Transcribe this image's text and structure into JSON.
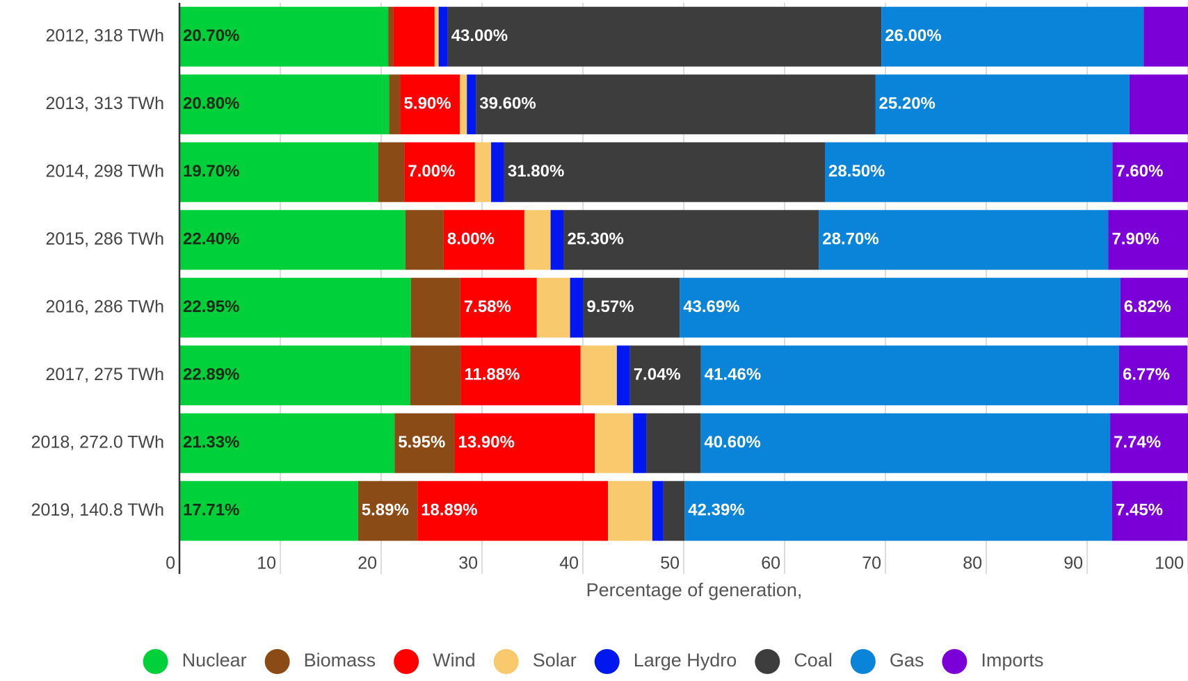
{
  "chart_data": {
    "type": "stacked-horizontal-bar",
    "categories": [
      "2012, 318 TWh",
      "2013, 313 TWh",
      "2014, 298 TWh",
      "2015, 286 TWh",
      "2016, 286 TWh",
      "2017, 275 TWh",
      "2018, 272.0 TWh",
      "2019, 140.8 TWh"
    ],
    "x_label": "Percentage of generation,",
    "xlim": [
      0,
      100
    ],
    "xticks": [
      0,
      10,
      20,
      30,
      40,
      50,
      60,
      70,
      80,
      90,
      100
    ],
    "grid": true,
    "legend": "bottom",
    "series": [
      {
        "name": "Nuclear",
        "color": "#00d03a",
        "label_color": "#1a2a1a",
        "values": [
          20.7,
          20.8,
          19.7,
          22.4,
          22.95,
          22.89,
          21.33,
          17.71
        ],
        "value_labels": [
          "20.70%",
          "20.80%",
          "19.70%",
          "22.40%",
          "22.95%",
          "22.89%",
          "21.33%",
          "17.71%"
        ]
      },
      {
        "name": "Biomass",
        "color": "#8a4b16",
        "values": [
          0.5,
          1.1,
          2.6,
          3.8,
          4.9,
          5.0,
          5.95,
          5.89
        ],
        "value_labels": [
          null,
          null,
          null,
          null,
          null,
          null,
          "5.95%",
          "5.89%"
        ]
      },
      {
        "name": "Wind",
        "color": "#ff0000",
        "values": [
          4.1,
          5.9,
          7.0,
          8.0,
          7.58,
          11.88,
          13.9,
          18.89
        ],
        "value_labels": [
          null,
          "5.90%",
          "7.00%",
          "8.00%",
          "7.58%",
          "11.88%",
          "13.90%",
          "18.89%"
        ]
      },
      {
        "name": "Solar",
        "color": "#f9c96e",
        "values": [
          0.4,
          0.7,
          1.6,
          2.6,
          3.3,
          3.6,
          3.8,
          4.4
        ],
        "value_labels": [
          null,
          null,
          null,
          null,
          null,
          null,
          null,
          null
        ]
      },
      {
        "name": "Large Hydro",
        "color": "#0018f0",
        "values": [
          0.9,
          0.9,
          1.3,
          1.3,
          1.3,
          1.3,
          1.3,
          1.1
        ],
        "value_labels": [
          null,
          null,
          null,
          null,
          null,
          null,
          null,
          null
        ]
      },
      {
        "name": "Coal",
        "color": "#3d3d3d",
        "values": [
          43.0,
          39.6,
          31.8,
          25.3,
          9.57,
          7.04,
          5.4,
          2.1
        ],
        "value_labels": [
          "43.00%",
          "39.60%",
          "31.80%",
          "25.30%",
          "9.57%",
          "7.04%",
          null,
          null
        ]
      },
      {
        "name": "Gas",
        "color": "#0a84d8",
        "values": [
          26.0,
          25.2,
          28.5,
          28.7,
          43.69,
          41.46,
          40.6,
          42.39
        ],
        "value_labels": [
          "26.00%",
          "25.20%",
          "28.50%",
          "28.70%",
          "43.69%",
          "41.46%",
          "40.60%",
          "42.39%"
        ]
      },
      {
        "name": "Imports",
        "color": "#7b00d8",
        "values": [
          4.4,
          5.8,
          7.6,
          7.9,
          6.82,
          6.77,
          7.74,
          7.45
        ],
        "value_labels": [
          null,
          null,
          "7.60%",
          "7.90%",
          "6.82%",
          "6.77%",
          "7.74%",
          "7.45%"
        ]
      }
    ]
  }
}
